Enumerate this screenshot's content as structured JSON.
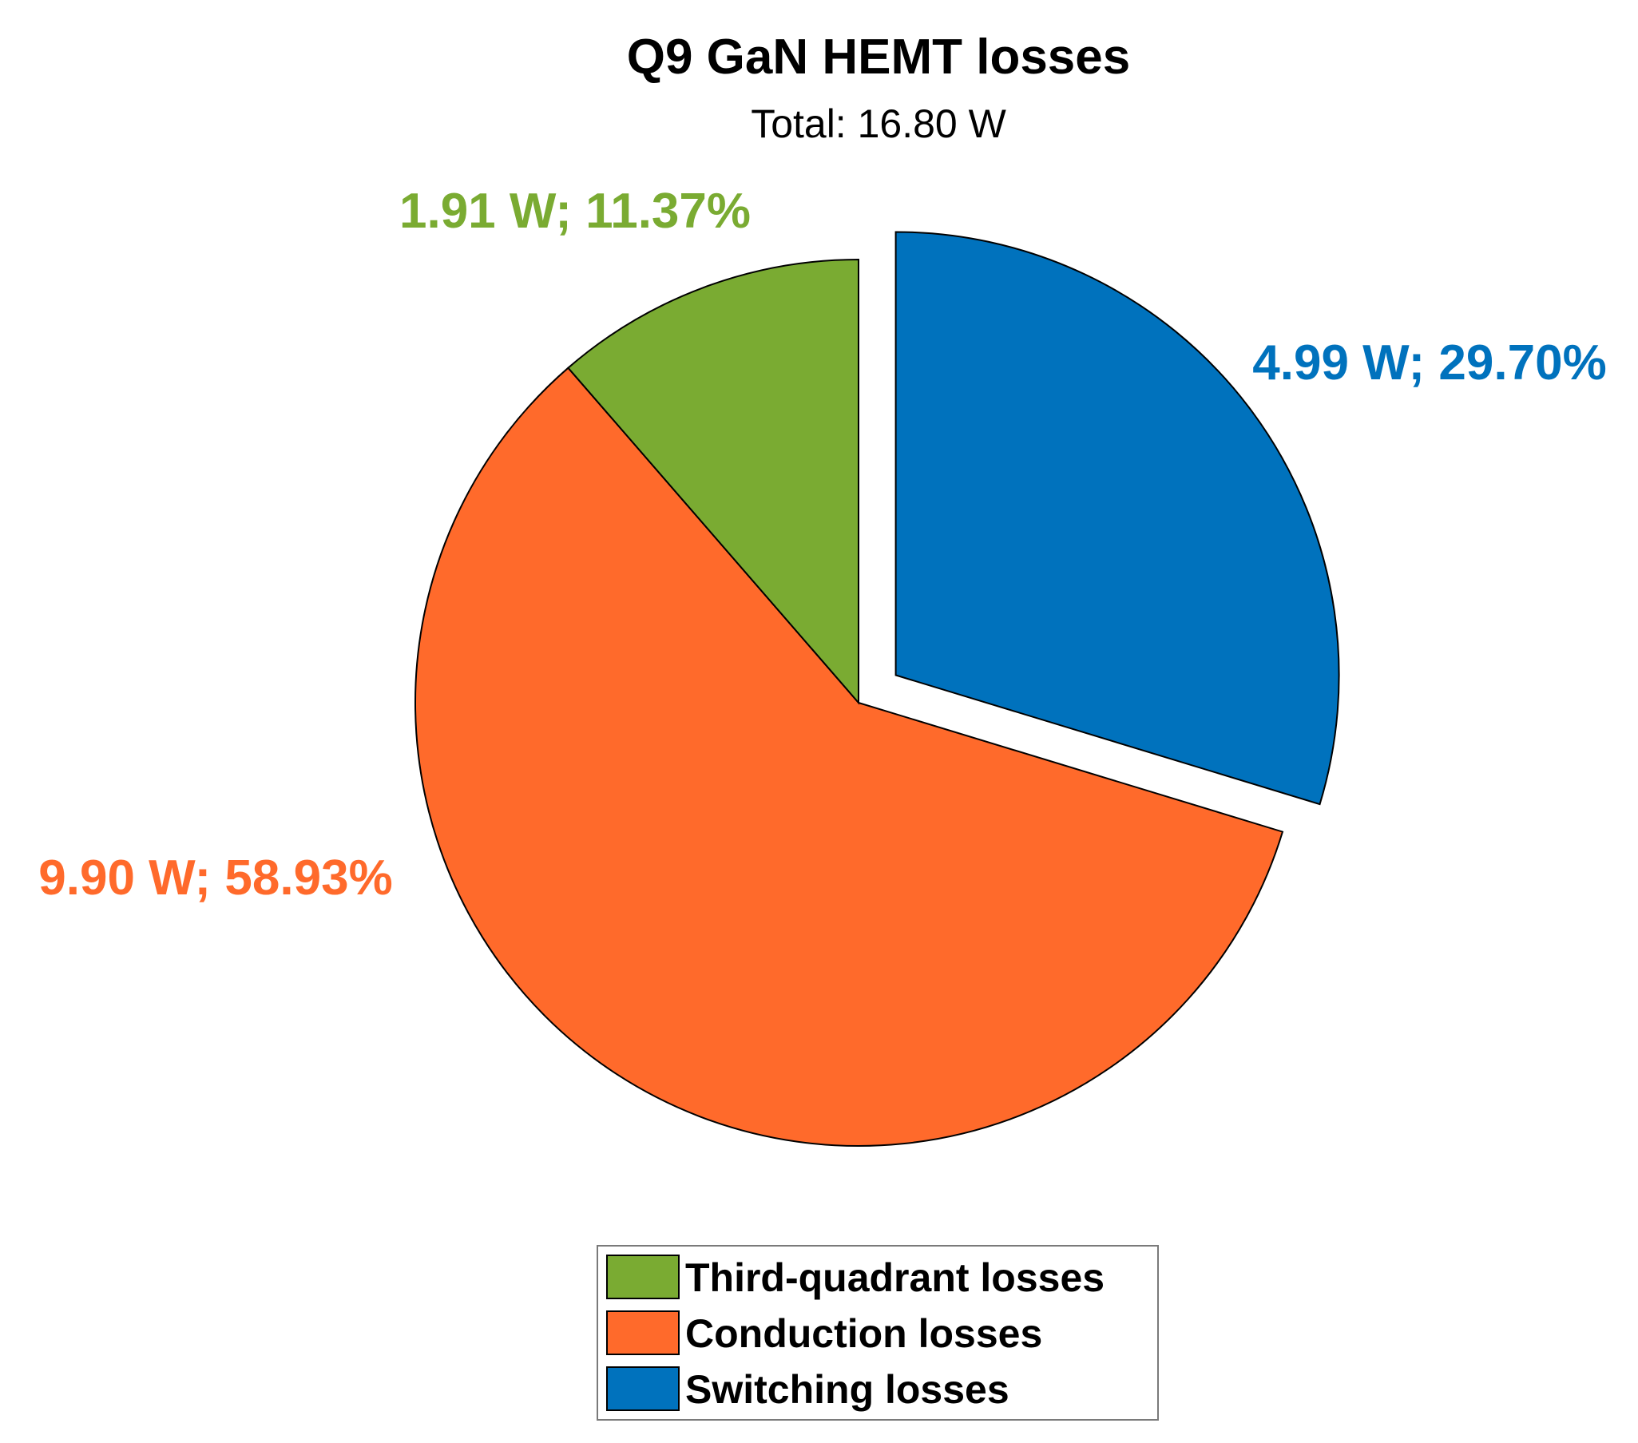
{
  "chart_data": {
    "type": "pie",
    "title": "Q9 GaN HEMT losses",
    "subtitle": "Total: 16.80 W",
    "slices": [
      {
        "name": "Third-quadrant losses",
        "value": 1.91,
        "percent": 11.37,
        "label": "1.91 W; 11.37%",
        "color": "#7aab32",
        "exploded": false
      },
      {
        "name": "Conduction losses",
        "value": 9.9,
        "percent": 58.93,
        "label": "9.90 W; 58.93%",
        "color": "#ff6a2b",
        "exploded": false
      },
      {
        "name": "Switching losses",
        "value": 4.99,
        "percent": 29.7,
        "label": "4.99 W; 29.70%",
        "color": "#0072bd",
        "exploded": true
      }
    ],
    "start_angle": "top, clockwise for switching; counter-clockwise order for others",
    "legend_position": "bottom-center"
  }
}
